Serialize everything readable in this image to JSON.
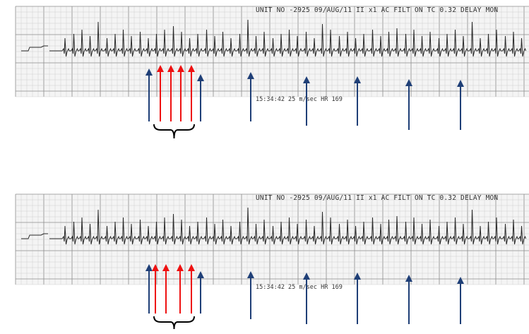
{
  "strips": [
    {
      "header": "UNIT NO -2925 09/AUG/11 II x1 AC FILT ON TC 0.32 DELAY MON",
      "footer": "15:34:42 25 m/sec HR 169"
    },
    {
      "header": "UNIT NO -2925 09/AUG/11 II x1 AC FILT ON TC 0.32 DELAY MON",
      "footer": "15:34:42 25 m/sec HR 169"
    }
  ],
  "colors": {
    "paper": "#f4f4f4",
    "grid_minor": "#c8c8c8",
    "grid_major": "#8c8c8c",
    "trace": "#2a2a2a",
    "arrow_blue": "#1f3f77",
    "arrow_red": "#ee1111",
    "brace": "#000000"
  },
  "icons": [
    "blue-up-arrow-icon",
    "red-up-arrow-icon",
    "curly-brace-icon"
  ]
}
